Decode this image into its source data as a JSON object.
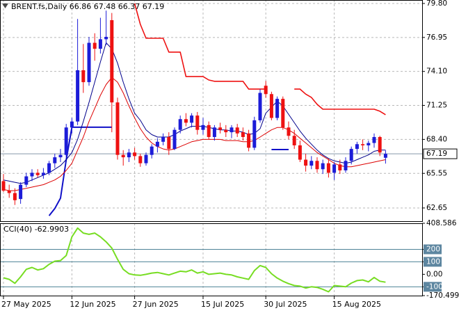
{
  "chart_data": [
    {
      "type": "candlestick",
      "title": "BRENT.fs,Daily",
      "categories": [
        "27 May 2025",
        null,
        null,
        null,
        null,
        null,
        null,
        null,
        null,
        null,
        null,
        null,
        "12 Jun 2025",
        null,
        null,
        null,
        null,
        null,
        null,
        null,
        null,
        null,
        null,
        "27 Jun 2025",
        null,
        null,
        null,
        null,
        null,
        null,
        null,
        null,
        null,
        null,
        null,
        "15 Jul 2025",
        null,
        null,
        null,
        null,
        null,
        null,
        null,
        null,
        null,
        null,
        "30 Jul 2025",
        null,
        null,
        null,
        null,
        null,
        null,
        null,
        null,
        null,
        null,
        null,
        "15 Aug 2025",
        null,
        null,
        null,
        null,
        null,
        null,
        null,
        null,
        null
      ],
      "open": [
        64.9,
        64.1,
        63.9,
        63.4,
        64.6,
        65.3,
        65.6,
        65.4,
        65.6,
        66.4,
        66.9,
        67.1,
        69.4,
        69.9,
        74.2,
        73.2,
        76.5,
        76.0,
        76.8,
        78.4,
        71.5,
        67.1,
        66.9,
        67.3,
        67.0,
        66.4,
        67.1,
        67.8,
        68.2,
        68.6,
        67.6,
        69.2,
        70.1,
        69.8,
        70.4,
        69.2,
        69.6,
        68.6,
        69.4,
        69.2,
        69.0,
        69.4,
        69.0,
        68.9,
        67.7,
        70.0,
        72.9,
        72.2,
        70.2,
        71.8,
        69.4,
        68.7,
        67.9,
        66.7,
        66.2,
        66.6,
        65.9,
        66.4,
        65.6,
        66.3,
        65.8,
        66.6,
        67.6,
        68.0,
        67.9,
        68.1,
        68.6,
        66.86
      ],
      "high": [
        65.5,
        64.6,
        64.3,
        64.8,
        65.6,
        65.9,
        65.9,
        66.0,
        66.6,
        67.2,
        67.6,
        69.7,
        70.2,
        78.5,
        76.4,
        77.0,
        77.3,
        78.6,
        79.2,
        79.0,
        71.9,
        67.5,
        67.6,
        67.7,
        67.2,
        67.3,
        68.0,
        68.5,
        68.9,
        69.0,
        69.4,
        70.4,
        70.6,
        70.6,
        70.7,
        70.2,
        69.9,
        69.6,
        69.8,
        69.6,
        69.6,
        69.7,
        69.4,
        69.2,
        70.3,
        72.6,
        73.3,
        72.4,
        72.0,
        72.0,
        69.9,
        69.2,
        68.3,
        67.2,
        67.0,
        66.9,
        66.7,
        66.8,
        66.5,
        66.7,
        66.9,
        67.8,
        68.2,
        68.4,
        68.3,
        68.9,
        68.7,
        67.48
      ],
      "low": [
        64.0,
        63.5,
        62.9,
        63.0,
        64.4,
        64.9,
        65.2,
        65.1,
        65.4,
        66.0,
        66.5,
        66.9,
        68.9,
        69.6,
        72.3,
        72.9,
        75.0,
        75.6,
        76.3,
        69.0,
        66.7,
        66.2,
        66.5,
        66.7,
        66.1,
        66.2,
        66.8,
        67.3,
        67.9,
        67.1,
        67.5,
        68.9,
        69.5,
        69.4,
        68.8,
        68.8,
        68.4,
        68.3,
        68.9,
        68.6,
        68.5,
        68.6,
        68.3,
        67.4,
        67.5,
        69.8,
        71.9,
        70.0,
        70.0,
        69.2,
        68.4,
        67.6,
        66.5,
        65.7,
        65.9,
        65.6,
        65.5,
        65.2,
        65.0,
        65.5,
        65.6,
        66.3,
        67.2,
        67.5,
        67.4,
        67.7,
        67.0,
        66.37
      ],
      "close": [
        64.1,
        63.9,
        63.3,
        64.6,
        65.3,
        65.6,
        65.4,
        65.6,
        66.4,
        66.9,
        67.1,
        69.4,
        69.9,
        74.2,
        73.2,
        76.5,
        76.0,
        76.8,
        77.0,
        71.5,
        67.1,
        66.9,
        67.3,
        67.0,
        66.4,
        67.1,
        67.8,
        68.2,
        68.6,
        67.6,
        69.2,
        70.1,
        69.8,
        70.4,
        69.2,
        69.6,
        68.6,
        69.4,
        69.2,
        69.0,
        69.4,
        68.9,
        68.6,
        67.7,
        70.0,
        72.3,
        72.2,
        70.2,
        71.8,
        69.4,
        68.7,
        67.9,
        66.7,
        66.2,
        66.6,
        65.9,
        66.4,
        65.6,
        66.3,
        65.8,
        66.6,
        67.6,
        68.0,
        67.9,
        68.1,
        68.6,
        67.3,
        67.19
      ],
      "up_color": "#1c1cd8",
      "down_color": "#ee1111",
      "overlays": [
        {
          "color": "#ee1111",
          "width": 1.6,
          "values": [
            null,
            null,
            null,
            null,
            null,
            null,
            null,
            null,
            null,
            null,
            null,
            null,
            null,
            null,
            null,
            null,
            null,
            null,
            null,
            null,
            null,
            null,
            null,
            79.8,
            78.05,
            76.88,
            76.88,
            76.88,
            76.88,
            75.72,
            75.72,
            75.72,
            73.67,
            73.67,
            73.67,
            73.67,
            73.38,
            73.27,
            73.27,
            73.27,
            73.27,
            73.27,
            73.27,
            72.62,
            72.62,
            72.62,
            72.62,
            null,
            null,
            null,
            null,
            72.62,
            72.62,
            72.2,
            71.92,
            71.34,
            70.93,
            70.93,
            70.93,
            70.93,
            70.93,
            70.93,
            70.93,
            70.93,
            70.93,
            70.93,
            70.76,
            70.47
          ]
        },
        {
          "color": "#1010c8",
          "width": 2,
          "values": [
            null,
            null,
            null,
            null,
            null,
            null,
            null,
            null,
            62.0,
            62.6,
            63.47,
            66.68,
            69.42,
            69.42,
            69.42,
            69.42,
            69.42,
            69.42,
            69.42,
            69.42,
            null,
            null,
            null,
            null,
            null,
            null,
            null,
            null,
            null,
            null,
            null,
            null,
            null,
            null,
            null,
            null,
            null,
            null,
            null,
            null,
            null,
            null,
            null,
            null,
            null,
            null,
            null,
            67.55,
            67.55,
            67.55,
            67.55,
            null,
            null,
            null,
            null,
            null,
            null,
            null,
            null,
            null,
            null,
            null,
            null,
            null,
            null,
            null,
            null,
            null
          ]
        },
        {
          "color": "#00008b",
          "width": 1,
          "values": [
            65.0,
            64.9,
            64.8,
            64.7,
            64.8,
            65.0,
            65.2,
            65.4,
            65.6,
            65.9,
            66.2,
            66.7,
            67.3,
            68.4,
            69.9,
            71.5,
            73.2,
            74.9,
            76.5,
            76.0,
            74.8,
            73.2,
            71.8,
            70.6,
            70.0,
            69.2,
            68.8,
            68.6,
            68.6,
            68.6,
            68.8,
            69.1,
            69.3,
            69.5,
            69.5,
            69.5,
            69.4,
            69.3,
            69.2,
            69.2,
            69.1,
            69.1,
            69.0,
            68.8,
            68.9,
            69.3,
            70.6,
            71.1,
            71.6,
            71.2,
            70.5,
            69.8,
            69.1,
            68.5,
            68.0,
            67.5,
            67.1,
            66.8,
            66.6,
            66.5,
            66.4,
            66.5,
            66.7,
            66.9,
            67.1,
            67.4,
            67.5,
            67.5
          ]
        },
        {
          "color": "#dd0000",
          "width": 1,
          "values": [
            64.2,
            64.1,
            64.1,
            64.2,
            64.3,
            64.4,
            64.5,
            64.6,
            64.8,
            65.0,
            65.3,
            65.8,
            66.4,
            67.5,
            68.6,
            69.9,
            71.0,
            72.1,
            73.0,
            73.6,
            73.2,
            72.3,
            71.2,
            70.2,
            69.3,
            68.6,
            68.1,
            67.8,
            67.6,
            67.5,
            67.6,
            67.8,
            68.0,
            68.2,
            68.3,
            68.4,
            68.4,
            68.4,
            68.4,
            68.3,
            68.3,
            68.3,
            68.2,
            68.2,
            68.3,
            68.6,
            68.9,
            69.2,
            69.4,
            69.4,
            69.2,
            68.9,
            68.5,
            68.1,
            67.7,
            67.3,
            67.0,
            66.7,
            66.4,
            66.2,
            66.1,
            66.1,
            66.2,
            66.3,
            66.4,
            66.5,
            66.6,
            66.7
          ]
        }
      ],
      "ylim": [
        61.54,
        80.09
      ],
      "yticks": [
        62.65,
        65.55,
        {
          "value": 68.4,
          "label": "68.40"
        },
        71.25,
        {
          "value": 74.1,
          "label": "74.10"
        },
        76.95,
        {
          "value": 79.8,
          "label": "79.80"
        }
      ],
      "grid": true
    },
    {
      "type": "line",
      "title": "CCI(40)",
      "values": [
        -28,
        -40,
        -72,
        -20,
        40,
        55,
        35,
        45,
        80,
        105,
        110,
        150,
        300,
        370,
        330,
        320,
        330,
        300,
        260,
        210,
        120,
        40,
        5,
        -5,
        -8,
        0,
        10,
        15,
        5,
        -5,
        10,
        25,
        20,
        35,
        10,
        20,
        0,
        5,
        10,
        0,
        -5,
        -20,
        -30,
        -40,
        30,
        70,
        55,
        5,
        -30,
        -55,
        -75,
        -90,
        -95,
        -110,
        -100,
        -105,
        -120,
        -140,
        -90,
        -95,
        -100,
        -70,
        -50,
        -45,
        -60,
        -25,
        -55,
        -62.9903
      ],
      "color": "#77dd22",
      "ylim": [
        -170.499,
        408.586
      ],
      "yticks": [
        408.586,
        200,
        100,
        {
          "value": 0,
          "label": "0.00"
        },
        -100,
        -170.499
      ],
      "levels": [
        200,
        100,
        -100
      ]
    }
  ]
}
